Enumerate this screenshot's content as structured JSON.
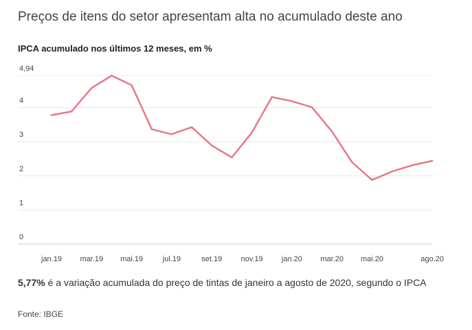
{
  "headline": "Preços de itens do setor apresentam alta no acumulado deste ano",
  "chart_data": {
    "type": "line",
    "title": "IPCA acumulado nos últimos 12 meses, em %",
    "xlabel": "",
    "ylabel": "",
    "y_ticks": [
      "0",
      "1",
      "2",
      "3",
      "4",
      "4,94"
    ],
    "y_tick_values": [
      0,
      1,
      2,
      3,
      4,
      4.94
    ],
    "ylim": [
      0,
      4.94
    ],
    "grid": true,
    "x": [
      "jan.19",
      "fev.19",
      "mar.19",
      "abr.19",
      "mai.19",
      "jun.19",
      "jul.19",
      "ago.19",
      "set.19",
      "out.19",
      "nov.19",
      "dez.19",
      "jan.20",
      "fev.20",
      "mar.20",
      "abr.20",
      "mai.20",
      "jun.20",
      "jul.20",
      "ago.20"
    ],
    "x_tick_labels": [
      "jan.19",
      "",
      "mar.19",
      "",
      "mai.19",
      "",
      "jul.19",
      "",
      "set.19",
      "",
      "nov.19",
      "",
      "jan.20",
      "",
      "mar.20",
      "",
      "mai.20",
      "",
      "",
      "ago.20"
    ],
    "series": [
      {
        "color": "#e8778a",
        "values": [
          3.78,
          3.89,
          4.58,
          4.94,
          4.66,
          3.37,
          3.22,
          3.43,
          2.89,
          2.54,
          3.27,
          4.31,
          4.19,
          4.01,
          3.3,
          2.4,
          1.88,
          2.13,
          2.31,
          2.44
        ]
      }
    ]
  },
  "note": {
    "highlight": "5,77%",
    "text": " é a variação acumulada do preço de tintas de janeiro a agosto de 2020, segundo o IPCA"
  },
  "source": "Fonte: IBGE"
}
